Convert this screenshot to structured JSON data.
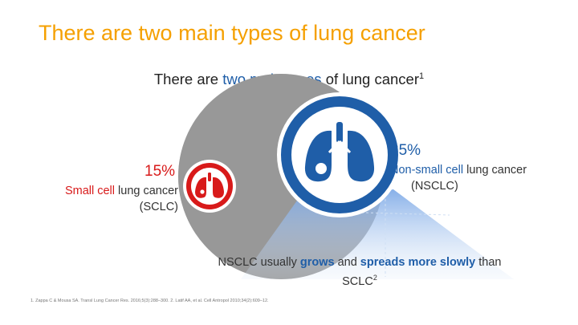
{
  "title": "There are two main types of lung cancer",
  "subtitle": {
    "pre": "There are ",
    "highlight": "two main types",
    "post": " of lung cancer",
    "ref": "1"
  },
  "sclc": {
    "percent": "15%",
    "name_highlight": "Small cell",
    "name_rest": " lung cancer",
    "abbr": "(SCLC)",
    "share": 15,
    "color": "#d81a1a"
  },
  "nsclc": {
    "percent": "85%",
    "name_highlight": "Non-small cell",
    "name_rest": " lung cancer",
    "abbr": "(NSCLC)",
    "share": 85,
    "color": "#1f5ea8"
  },
  "note": {
    "p1": "NSCLC usually ",
    "h1": "grows",
    "p2": " and ",
    "h2": "spreads more slowly",
    "p3": " than SCLC",
    "ref": "2"
  },
  "footnote": "1. Zappa C & Mousa SA. Transl Lung Cancer Res. 2016;5(3):288–300. 2. Latif AA, et al. Cell Antropol 2010;34(2):609–12.",
  "icons": [
    "lungs-icon",
    "lungs-icon"
  ],
  "colors": {
    "title": "#f5a000",
    "disc": "#8a8a8a"
  }
}
